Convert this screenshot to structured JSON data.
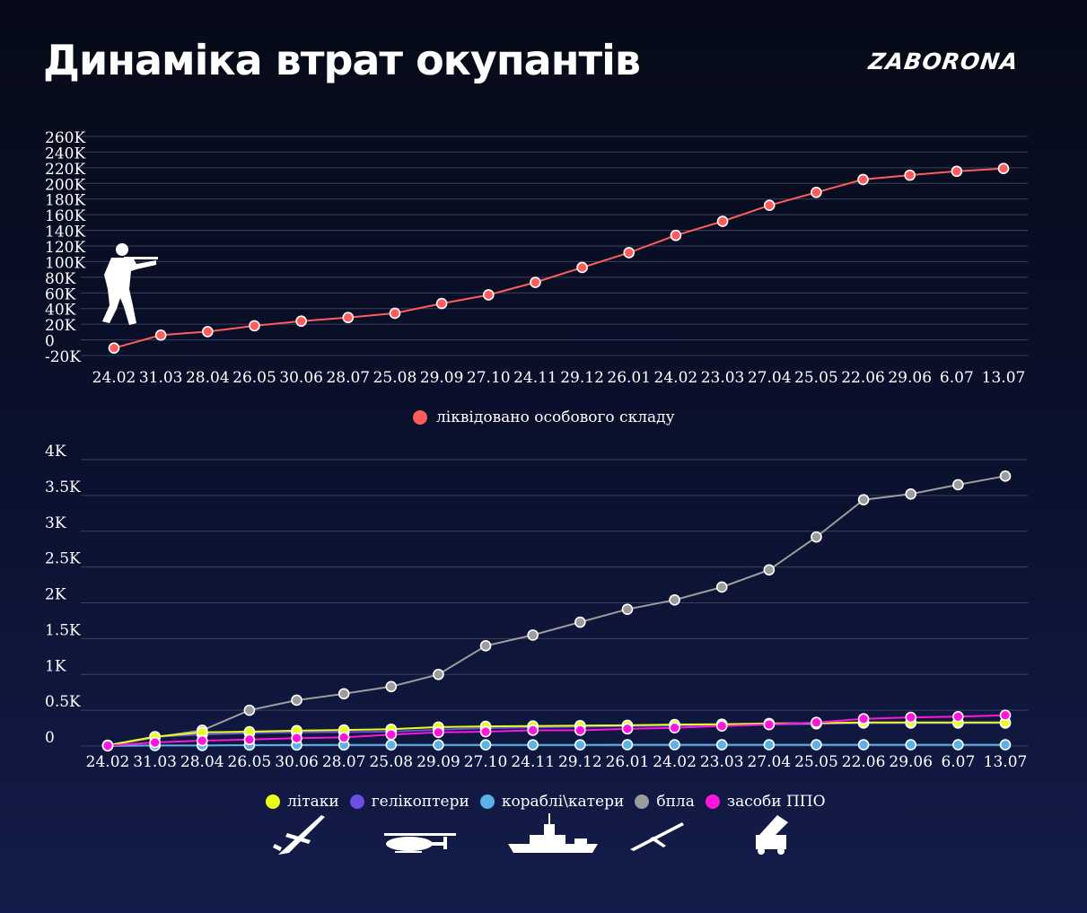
{
  "header": {
    "title": "Динаміка втрат окупантів",
    "brand": "ZABORONA"
  },
  "colors": {
    "personnel": "#ff5c5c",
    "planes": "#e7ff1a",
    "helicopters": "#6b4fe0",
    "ships": "#5ab2e8",
    "drones": "#9c9c9c",
    "air_defense": "#ff14e0",
    "grid": "#3a4060"
  },
  "icons": [
    "soldier-icon",
    "plane-icon",
    "helicopter-icon",
    "ship-icon",
    "drone-icon",
    "air-defense-launcher-icon"
  ],
  "chart_data": [
    {
      "type": "line",
      "title": "",
      "xlabel": "",
      "ylabel": "",
      "ylim": [
        -20000,
        260000
      ],
      "y_ticks": [
        -20000,
        0,
        20000,
        40000,
        60000,
        80000,
        100000,
        120000,
        140000,
        160000,
        180000,
        200000,
        220000,
        240000,
        260000
      ],
      "y_tick_labels": [
        "-20K",
        "0",
        "20K",
        "40K",
        "60K",
        "80K",
        "100K",
        "120K",
        "140K",
        "160K",
        "180K",
        "200K",
        "220K",
        "240K",
        "260K"
      ],
      "grid": true,
      "legend_position": "bottom-center",
      "categories": [
        "24.02",
        "31.03",
        "28.04",
        "26.05",
        "30.06",
        "28.07",
        "25.08",
        "29.09",
        "27.10",
        "24.11",
        "29.12",
        "26.01",
        "24.02",
        "23.03",
        "27.04",
        "25.05",
        "22.06",
        "29.06",
        "6.07",
        "13.07"
      ],
      "series": [
        {
          "name": "ліквідовано особового складу",
          "color": "#ff5c5c",
          "values": [
            -10500,
            6000,
            10500,
            18000,
            24000,
            28500,
            34000,
            46500,
            57500,
            73500,
            92500,
            111500,
            133500,
            151500,
            172000,
            188500,
            205000,
            210500,
            215500,
            219000
          ]
        }
      ]
    },
    {
      "type": "line",
      "title": "",
      "xlabel": "",
      "ylabel": "",
      "ylim": [
        0,
        4000
      ],
      "y_ticks": [
        0,
        500,
        1000,
        1500,
        2000,
        2500,
        3000,
        3500,
        4000
      ],
      "y_tick_labels": [
        "0",
        "0.5K",
        "1K",
        "1.5K",
        "2K",
        "2.5K",
        "3K",
        "3.5K",
        "4K"
      ],
      "grid": true,
      "legend_position": "bottom-center",
      "categories": [
        "24.02",
        "31.03",
        "28.04",
        "26.05",
        "30.06",
        "28.07",
        "25.08",
        "29.09",
        "27.10",
        "24.11",
        "29.12",
        "26.01",
        "24.02",
        "23.03",
        "27.04",
        "25.05",
        "22.06",
        "29.06",
        "6.07",
        "13.07"
      ],
      "series": [
        {
          "name": "літаки",
          "color": "#e7ff1a",
          "values": [
            10,
            130,
            190,
            200,
            215,
            225,
            235,
            265,
            275,
            280,
            285,
            290,
            300,
            305,
            315,
            320,
            330,
            330,
            330,
            330
          ]
        },
        {
          "name": "гелікоптери",
          "color": "#6b4fe0",
          "values": [
            10,
            130,
            160,
            180,
            190,
            195,
            200,
            230,
            250,
            260,
            270,
            280,
            285,
            295,
            300,
            310,
            320,
            320,
            320,
            320
          ]
        },
        {
          "name": "кораблі\\катери",
          "color": "#5ab2e8",
          "values": [
            1,
            7,
            8,
            13,
            14,
            15,
            15,
            15,
            16,
            16,
            16,
            18,
            18,
            18,
            18,
            18,
            18,
            18,
            18,
            18
          ]
        },
        {
          "name": "бпла",
          "color": "#9c9c9c",
          "values": [
            5,
            120,
            220,
            500,
            640,
            730,
            830,
            1000,
            1400,
            1550,
            1730,
            1910,
            2040,
            2220,
            2460,
            2920,
            3440,
            3520,
            3650,
            3770
          ]
        },
        {
          "name": "засоби ППО",
          "color": "#ff14e0",
          "values": [
            5,
            50,
            75,
            90,
            110,
            120,
            160,
            190,
            200,
            220,
            220,
            240,
            255,
            280,
            300,
            330,
            380,
            400,
            410,
            430
          ]
        }
      ]
    }
  ]
}
